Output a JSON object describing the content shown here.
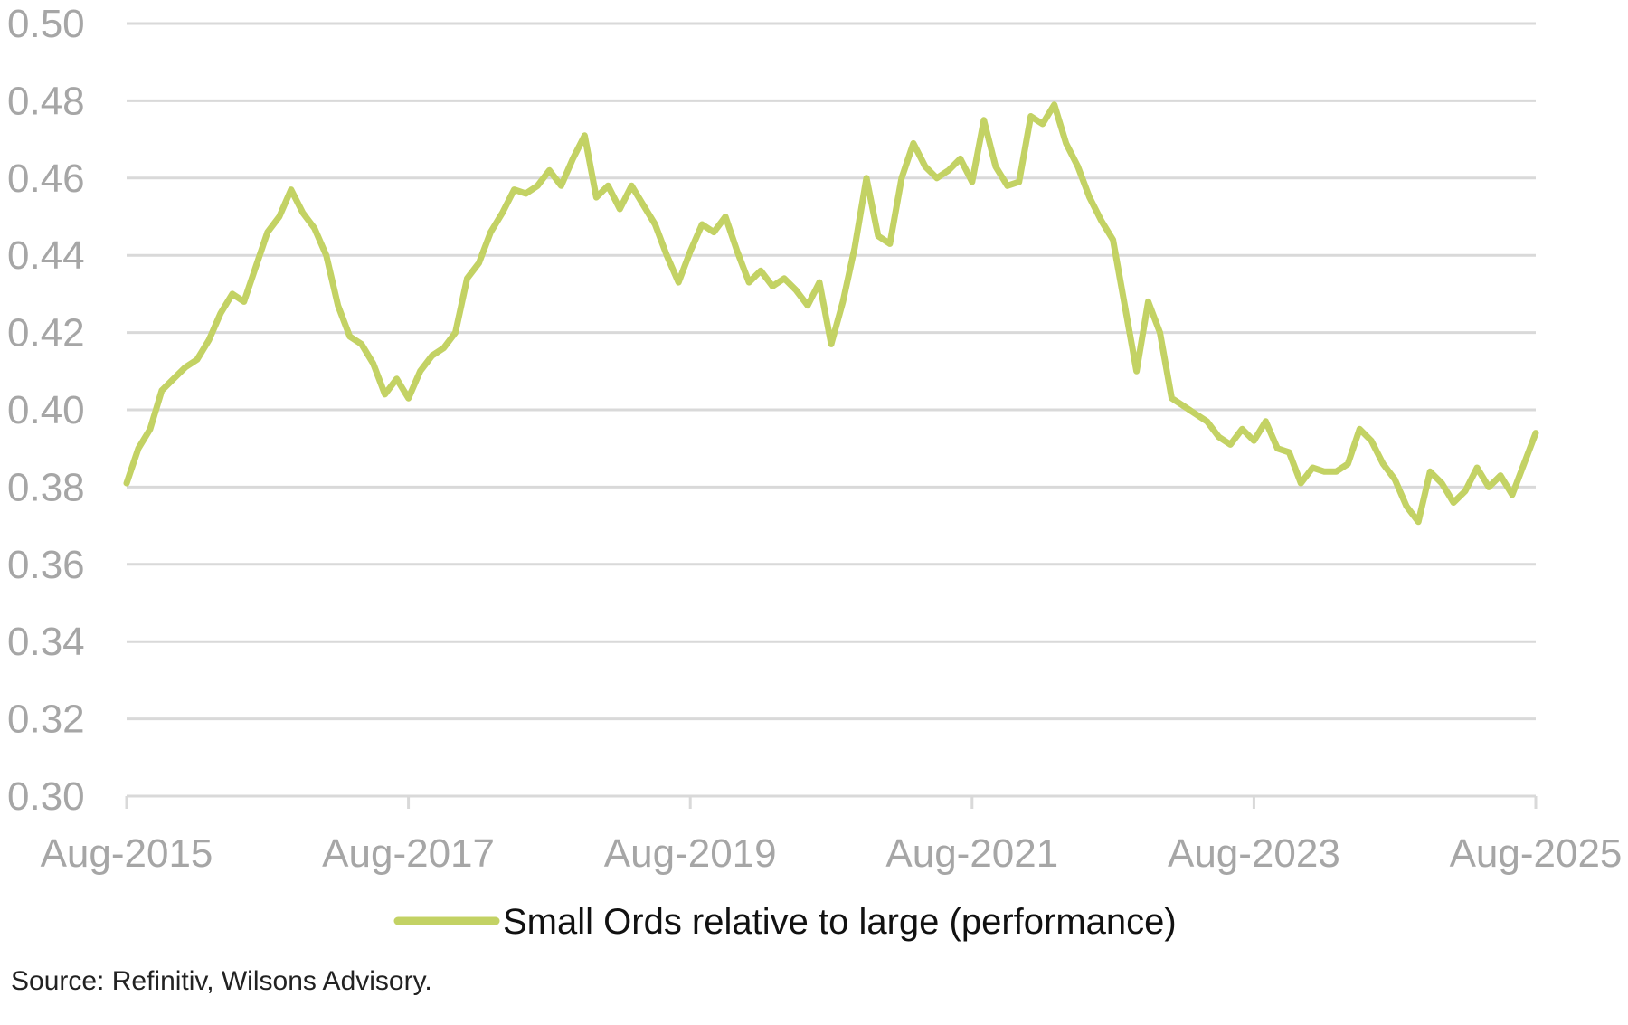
{
  "chart_data": {
    "type": "line",
    "x_ticks": [
      "Aug-2015",
      "Aug-2017",
      "Aug-2019",
      "Aug-2021",
      "Aug-2023",
      "Aug-2025"
    ],
    "y_ticks": [
      "0.30",
      "0.32",
      "0.34",
      "0.36",
      "0.38",
      "0.40",
      "0.42",
      "0.44",
      "0.46",
      "0.48",
      "0.50"
    ],
    "ylim": [
      0.3,
      0.5
    ],
    "xlim": [
      "2015-08",
      "2025-08"
    ],
    "grid": true,
    "legend_position": "bottom",
    "series": [
      {
        "name": "Small Ords relative to large (performance)",
        "color": "#c3d264",
        "x": [
          "2015-08",
          "2015-09",
          "2015-10",
          "2015-11",
          "2015-12",
          "2016-01",
          "2016-02",
          "2016-03",
          "2016-04",
          "2016-05",
          "2016-06",
          "2016-07",
          "2016-08",
          "2016-09",
          "2016-10",
          "2016-11",
          "2016-12",
          "2017-01",
          "2017-02",
          "2017-03",
          "2017-04",
          "2017-05",
          "2017-06",
          "2017-07",
          "2017-08",
          "2017-09",
          "2017-10",
          "2017-11",
          "2017-12",
          "2018-01",
          "2018-02",
          "2018-03",
          "2018-04",
          "2018-05",
          "2018-06",
          "2018-07",
          "2018-08",
          "2018-09",
          "2018-10",
          "2018-11",
          "2018-12",
          "2019-01",
          "2019-02",
          "2019-03",
          "2019-04",
          "2019-05",
          "2019-06",
          "2019-07",
          "2019-08",
          "2019-09",
          "2019-10",
          "2019-11",
          "2019-12",
          "2020-01",
          "2020-02",
          "2020-03",
          "2020-04",
          "2020-05",
          "2020-06",
          "2020-07",
          "2020-08",
          "2020-09",
          "2020-10",
          "2020-11",
          "2020-12",
          "2021-01",
          "2021-02",
          "2021-03",
          "2021-04",
          "2021-05",
          "2021-06",
          "2021-07",
          "2021-08",
          "2021-09",
          "2021-10",
          "2021-11",
          "2021-12",
          "2022-01",
          "2022-02",
          "2022-03",
          "2022-04",
          "2022-05",
          "2022-06",
          "2022-07",
          "2022-08",
          "2022-09",
          "2022-10",
          "2022-11",
          "2022-12",
          "2023-01",
          "2023-02",
          "2023-03",
          "2023-04",
          "2023-05",
          "2023-06",
          "2023-07",
          "2023-08",
          "2023-09",
          "2023-10",
          "2023-11",
          "2023-12",
          "2024-01",
          "2024-02",
          "2024-03",
          "2024-04",
          "2024-05",
          "2024-06",
          "2024-07",
          "2024-08",
          "2024-09",
          "2024-10",
          "2024-11",
          "2024-12",
          "2025-01",
          "2025-02",
          "2025-03",
          "2025-04",
          "2025-05",
          "2025-06",
          "2025-07",
          "2025-08"
        ],
        "values": [
          0.381,
          0.39,
          0.395,
          0.405,
          0.408,
          0.411,
          0.413,
          0.418,
          0.425,
          0.43,
          0.428,
          0.437,
          0.446,
          0.45,
          0.457,
          0.451,
          0.447,
          0.44,
          0.427,
          0.419,
          0.417,
          0.412,
          0.404,
          0.408,
          0.403,
          0.41,
          0.414,
          0.416,
          0.42,
          0.434,
          0.438,
          0.446,
          0.451,
          0.457,
          0.456,
          0.458,
          0.462,
          0.458,
          0.465,
          0.471,
          0.455,
          0.458,
          0.452,
          0.458,
          0.453,
          0.448,
          0.44,
          0.433,
          0.441,
          0.448,
          0.446,
          0.45,
          0.441,
          0.433,
          0.436,
          0.432,
          0.434,
          0.431,
          0.427,
          0.433,
          0.417,
          0.428,
          0.442,
          0.46,
          0.445,
          0.443,
          0.46,
          0.469,
          0.463,
          0.46,
          0.462,
          0.465,
          0.459,
          0.475,
          0.463,
          0.458,
          0.459,
          0.476,
          0.474,
          0.479,
          0.469,
          0.463,
          0.455,
          0.449,
          0.444,
          0.427,
          0.41,
          0.428,
          0.42,
          0.403,
          0.401,
          0.399,
          0.397,
          0.393,
          0.391,
          0.395,
          0.392,
          0.397,
          0.39,
          0.389,
          0.381,
          0.385,
          0.384,
          0.384,
          0.386,
          0.395,
          0.392,
          0.386,
          0.382,
          0.375,
          0.371,
          0.384,
          0.381,
          0.376,
          0.379,
          0.385,
          0.38,
          0.383,
          0.378,
          0.386,
          0.394
        ]
      }
    ]
  },
  "source": "Source: Refinitiv, Wilsons Advisory."
}
